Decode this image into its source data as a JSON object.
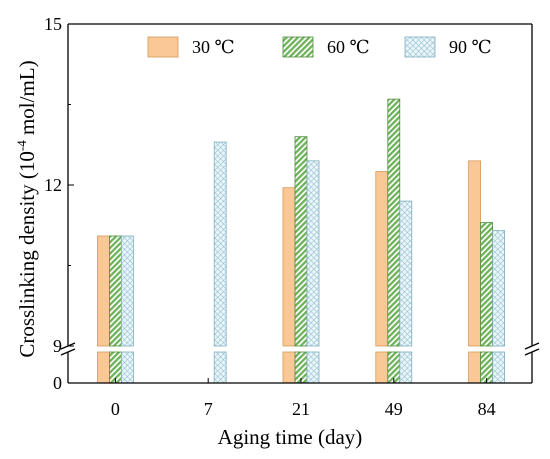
{
  "chart_data": {
    "type": "bar",
    "ylabel_main": "Crosslinking density (10",
    "ylabel_exp": "-4",
    "ylabel_unit": " mol/mL)",
    "xlabel": "Aging time (day)",
    "categories": [
      "0",
      "7",
      "21",
      "49",
      "84"
    ],
    "series": [
      {
        "name": "30 ℃",
        "values": [
          11.05,
          null,
          11.95,
          12.25,
          12.45
        ],
        "color": "#F9C896",
        "pattern": "solid"
      },
      {
        "name": "60 ℃",
        "values": [
          11.05,
          null,
          12.9,
          13.6,
          11.3
        ],
        "color": "#6DB25A",
        "pattern": "diagonal"
      },
      {
        "name": "90 ℃",
        "values": [
          11.05,
          12.8,
          12.45,
          11.7,
          11.15
        ],
        "color": "#A9D6E5",
        "pattern": "crosshatch"
      }
    ],
    "y_axis": {
      "upper_range": [
        9,
        15
      ],
      "lower_range": [
        0,
        1
      ],
      "upper_ticks": [
        "9",
        "12",
        "15"
      ],
      "lower_ticks": [
        "0"
      ],
      "broken": true
    },
    "legend_position": "top"
  }
}
